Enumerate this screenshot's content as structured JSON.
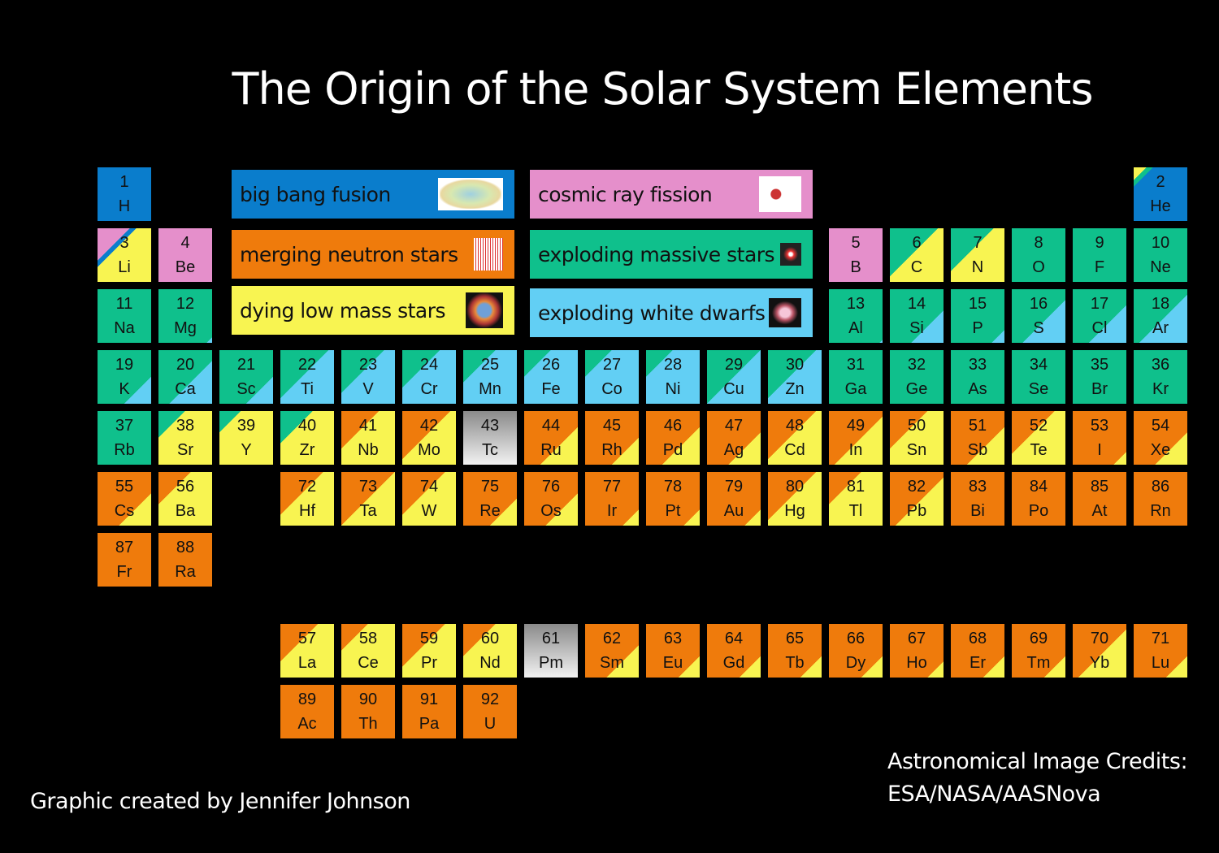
{
  "title": "The Origin of the Solar System Elements",
  "colors": {
    "bb": "#0a7dcc",
    "cr": "#e58fcb",
    "ns": "#ef7b0c",
    "ms": "#0fc08c",
    "lm": "#f8f451",
    "wd": "#62cff4"
  },
  "legend": [
    {
      "key": "bb",
      "label": "big bang fusion",
      "icon": "cmb-map-icon"
    },
    {
      "key": "ns",
      "label": "merging neutron stars",
      "icon": "gravitational-wave-icon"
    },
    {
      "key": "lm",
      "label": "dying low mass stars",
      "icon": "planetary-nebula-icon"
    },
    {
      "key": "cr",
      "label": "cosmic ray fission",
      "icon": "nucleus-fission-icon"
    },
    {
      "key": "ms",
      "label": "exploding massive stars",
      "icon": "supernova-remnant-icon"
    },
    {
      "key": "wd",
      "label": "exploding white dwarfs",
      "icon": "white-dwarf-remnant-icon"
    }
  ],
  "elements": [
    {
      "z": 1,
      "s": "H",
      "f": [
        [
          "bb",
          100
        ]
      ]
    },
    {
      "z": 2,
      "s": "He",
      "f": [
        [
          "lm",
          12
        ],
        [
          "ms",
          6
        ],
        [
          "bb",
          82
        ]
      ]
    },
    {
      "z": 3,
      "s": "Li",
      "f": [
        [
          "cr",
          30
        ],
        [
          "bb",
          6
        ],
        [
          "lm",
          64
        ]
      ]
    },
    {
      "z": 4,
      "s": "Be",
      "f": [
        [
          "cr",
          100
        ]
      ]
    },
    {
      "z": 5,
      "s": "B",
      "f": [
        [
          "cr",
          100
        ]
      ]
    },
    {
      "z": 6,
      "s": "C",
      "f": [
        [
          "ms",
          45
        ],
        [
          "lm",
          55
        ]
      ]
    },
    {
      "z": 7,
      "s": "N",
      "f": [
        [
          "ms",
          40
        ],
        [
          "lm",
          60
        ]
      ]
    },
    {
      "z": 8,
      "s": "O",
      "f": [
        [
          "ms",
          100
        ]
      ]
    },
    {
      "z": 9,
      "s": "F",
      "f": [
        [
          "ms",
          100
        ]
      ]
    },
    {
      "z": 10,
      "s": "Ne",
      "f": [
        [
          "ms",
          100
        ]
      ]
    },
    {
      "z": 11,
      "s": "Na",
      "f": [
        [
          "ms",
          100
        ]
      ]
    },
    {
      "z": 12,
      "s": "Mg",
      "f": [
        [
          "ms",
          95
        ],
        [
          "wd",
          5
        ]
      ]
    },
    {
      "z": 13,
      "s": "Al",
      "f": [
        [
          "ms",
          97
        ],
        [
          "wd",
          3
        ]
      ]
    },
    {
      "z": 14,
      "s": "Si",
      "f": [
        [
          "ms",
          70
        ],
        [
          "wd",
          30
        ]
      ]
    },
    {
      "z": 15,
      "s": "P",
      "f": [
        [
          "ms",
          88
        ],
        [
          "wd",
          12
        ]
      ]
    },
    {
      "z": 16,
      "s": "S",
      "f": [
        [
          "ms",
          60
        ],
        [
          "wd",
          40
        ]
      ]
    },
    {
      "z": 17,
      "s": "Cl",
      "f": [
        [
          "ms",
          65
        ],
        [
          "wd",
          35
        ]
      ]
    },
    {
      "z": 18,
      "s": "Ar",
      "f": [
        [
          "ms",
          55
        ],
        [
          "wd",
          45
        ]
      ]
    },
    {
      "z": 19,
      "s": "K",
      "f": [
        [
          "ms",
          75
        ],
        [
          "wd",
          25
        ]
      ]
    },
    {
      "z": 20,
      "s": "Ca",
      "f": [
        [
          "ms",
          60
        ],
        [
          "wd",
          40
        ]
      ]
    },
    {
      "z": 21,
      "s": "Sc",
      "f": [
        [
          "ms",
          75
        ],
        [
          "wd",
          25
        ]
      ]
    },
    {
      "z": 22,
      "s": "Ti",
      "f": [
        [
          "ms",
          45
        ],
        [
          "wd",
          55
        ]
      ]
    },
    {
      "z": 23,
      "s": "V",
      "f": [
        [
          "ms",
          40
        ],
        [
          "wd",
          60
        ]
      ]
    },
    {
      "z": 24,
      "s": "Cr",
      "f": [
        [
          "ms",
          35
        ],
        [
          "wd",
          65
        ]
      ]
    },
    {
      "z": 25,
      "s": "Mn",
      "f": [
        [
          "ms",
          30
        ],
        [
          "wd",
          70
        ]
      ]
    },
    {
      "z": 26,
      "s": "Fe",
      "f": [
        [
          "ms",
          25
        ],
        [
          "wd",
          75
        ]
      ]
    },
    {
      "z": 27,
      "s": "Co",
      "f": [
        [
          "ms",
          25
        ],
        [
          "wd",
          75
        ]
      ]
    },
    {
      "z": 28,
      "s": "Ni",
      "f": [
        [
          "ms",
          25
        ],
        [
          "wd",
          75
        ]
      ]
    },
    {
      "z": 29,
      "s": "Cu",
      "f": [
        [
          "ms",
          50
        ],
        [
          "wd",
          50
        ]
      ]
    },
    {
      "z": 30,
      "s": "Zn",
      "f": [
        [
          "ms",
          45
        ],
        [
          "wd",
          55
        ]
      ]
    },
    {
      "z": 31,
      "s": "Ga",
      "f": [
        [
          "ms",
          100
        ]
      ]
    },
    {
      "z": 32,
      "s": "Ge",
      "f": [
        [
          "ms",
          100
        ]
      ]
    },
    {
      "z": 33,
      "s": "As",
      "f": [
        [
          "ms",
          100
        ]
      ]
    },
    {
      "z": 34,
      "s": "Se",
      "f": [
        [
          "ms",
          100
        ]
      ]
    },
    {
      "z": 35,
      "s": "Br",
      "f": [
        [
          "ms",
          100
        ]
      ]
    },
    {
      "z": 36,
      "s": "Kr",
      "f": [
        [
          "ms",
          100
        ]
      ]
    },
    {
      "z": 37,
      "s": "Rb",
      "f": [
        [
          "ms",
          100
        ]
      ]
    },
    {
      "z": 38,
      "s": "Sr",
      "f": [
        [
          "ms",
          25
        ],
        [
          "lm",
          75
        ]
      ]
    },
    {
      "z": 39,
      "s": "Y",
      "f": [
        [
          "ms",
          20
        ],
        [
          "lm",
          80
        ]
      ]
    },
    {
      "z": 40,
      "s": "Zr",
      "f": [
        [
          "ms",
          30
        ],
        [
          "lm",
          70
        ]
      ]
    },
    {
      "z": 41,
      "s": "Nb",
      "f": [
        [
          "ns",
          35
        ],
        [
          "lm",
          65
        ]
      ]
    },
    {
      "z": 42,
      "s": "Mo",
      "f": [
        [
          "ns",
          45
        ],
        [
          "lm",
          55
        ]
      ]
    },
    {
      "z": 43,
      "s": "Tc",
      "f": []
    },
    {
      "z": 44,
      "s": "Ru",
      "f": [
        [
          "ns",
          65
        ],
        [
          "lm",
          35
        ]
      ]
    },
    {
      "z": 45,
      "s": "Rh",
      "f": [
        [
          "ns",
          75
        ],
        [
          "lm",
          25
        ]
      ]
    },
    {
      "z": 46,
      "s": "Pd",
      "f": [
        [
          "ns",
          65
        ],
        [
          "lm",
          35
        ]
      ]
    },
    {
      "z": 47,
      "s": "Ag",
      "f": [
        [
          "ns",
          70
        ],
        [
          "lm",
          30
        ]
      ]
    },
    {
      "z": 48,
      "s": "Cd",
      "f": [
        [
          "ns",
          45
        ],
        [
          "lm",
          55
        ]
      ]
    },
    {
      "z": 49,
      "s": "In",
      "f": [
        [
          "ns",
          55
        ],
        [
          "lm",
          45
        ]
      ]
    },
    {
      "z": 50,
      "s": "Sn",
      "f": [
        [
          "ns",
          35
        ],
        [
          "lm",
          65
        ]
      ]
    },
    {
      "z": 51,
      "s": "Sb",
      "f": [
        [
          "ns",
          65
        ],
        [
          "lm",
          35
        ]
      ]
    },
    {
      "z": 52,
      "s": "Te",
      "f": [
        [
          "ns",
          40
        ],
        [
          "lm",
          60
        ]
      ]
    },
    {
      "z": 53,
      "s": "I",
      "f": [
        [
          "ns",
          88
        ],
        [
          "lm",
          12
        ]
      ]
    },
    {
      "z": 54,
      "s": "Xe",
      "f": [
        [
          "ns",
          70
        ],
        [
          "lm",
          30
        ]
      ]
    },
    {
      "z": 55,
      "s": "Cs",
      "f": [
        [
          "ns",
          70
        ],
        [
          "lm",
          30
        ]
      ]
    },
    {
      "z": 56,
      "s": "Ba",
      "f": [
        [
          "ns",
          30
        ],
        [
          "lm",
          70
        ]
      ]
    },
    {
      "z": 57,
      "s": "La",
      "f": [
        [
          "ns",
          35
        ],
        [
          "lm",
          65
        ]
      ]
    },
    {
      "z": 58,
      "s": "Ce",
      "f": [
        [
          "ns",
          25
        ],
        [
          "lm",
          75
        ]
      ]
    },
    {
      "z": 59,
      "s": "Pr",
      "f": [
        [
          "ns",
          40
        ],
        [
          "lm",
          60
        ]
      ]
    },
    {
      "z": 60,
      "s": "Nd",
      "f": [
        [
          "ns",
          30
        ],
        [
          "lm",
          70
        ]
      ]
    },
    {
      "z": 61,
      "s": "Pm",
      "f": []
    },
    {
      "z": 62,
      "s": "Sm",
      "f": [
        [
          "ns",
          70
        ],
        [
          "lm",
          30
        ]
      ]
    },
    {
      "z": 63,
      "s": "Eu",
      "f": [
        [
          "ns",
          80
        ],
        [
          "lm",
          20
        ]
      ]
    },
    {
      "z": 64,
      "s": "Gd",
      "f": [
        [
          "ns",
          80
        ],
        [
          "lm",
          20
        ]
      ]
    },
    {
      "z": 65,
      "s": "Tb",
      "f": [
        [
          "ns",
          80
        ],
        [
          "lm",
          20
        ]
      ]
    },
    {
      "z": 66,
      "s": "Dy",
      "f": [
        [
          "ns",
          80
        ],
        [
          "lm",
          20
        ]
      ]
    },
    {
      "z": 67,
      "s": "Ho",
      "f": [
        [
          "ns",
          85
        ],
        [
          "lm",
          15
        ]
      ]
    },
    {
      "z": 68,
      "s": "Er",
      "f": [
        [
          "ns",
          80
        ],
        [
          "lm",
          20
        ]
      ]
    },
    {
      "z": 69,
      "s": "Tm",
      "f": [
        [
          "ns",
          80
        ],
        [
          "lm",
          20
        ]
      ]
    },
    {
      "z": 70,
      "s": "Yb",
      "f": [
        [
          "ns",
          55
        ],
        [
          "lm",
          45
        ]
      ]
    },
    {
      "z": 71,
      "s": "Lu",
      "f": [
        [
          "ns",
          80
        ],
        [
          "lm",
          20
        ]
      ]
    },
    {
      "z": 72,
      "s": "Hf",
      "f": [
        [
          "ns",
          40
        ],
        [
          "lm",
          60
        ]
      ]
    },
    {
      "z": 73,
      "s": "Ta",
      "f": [
        [
          "ns",
          50
        ],
        [
          "lm",
          50
        ]
      ]
    },
    {
      "z": 74,
      "s": "W",
      "f": [
        [
          "ns",
          40
        ],
        [
          "lm",
          60
        ]
      ]
    },
    {
      "z": 75,
      "s": "Re",
      "f": [
        [
          "ns",
          75
        ],
        [
          "lm",
          25
        ]
      ]
    },
    {
      "z": 76,
      "s": "Os",
      "f": [
        [
          "ns",
          70
        ],
        [
          "lm",
          30
        ]
      ]
    },
    {
      "z": 77,
      "s": "Ir",
      "f": [
        [
          "ns",
          85
        ],
        [
          "lm",
          15
        ]
      ]
    },
    {
      "z": 78,
      "s": "Pt",
      "f": [
        [
          "ns",
          85
        ],
        [
          "lm",
          15
        ]
      ]
    },
    {
      "z": 79,
      "s": "Au",
      "f": [
        [
          "ns",
          85
        ],
        [
          "lm",
          15
        ]
      ]
    },
    {
      "z": 80,
      "s": "Hg",
      "f": [
        [
          "ns",
          45
        ],
        [
          "lm",
          55
        ]
      ]
    },
    {
      "z": 81,
      "s": "Tl",
      "f": [
        [
          "ns",
          30
        ],
        [
          "lm",
          70
        ]
      ]
    },
    {
      "z": 82,
      "s": "Pb",
      "f": [
        [
          "ns",
          55
        ],
        [
          "lm",
          45
        ]
      ]
    },
    {
      "z": 83,
      "s": "Bi",
      "f": [
        [
          "ns",
          100
        ]
      ]
    },
    {
      "z": 84,
      "s": "Po",
      "f": [
        [
          "ns",
          100
        ]
      ]
    },
    {
      "z": 85,
      "s": "At",
      "f": [
        [
          "ns",
          100
        ]
      ]
    },
    {
      "z": 86,
      "s": "Rn",
      "f": [
        [
          "ns",
          100
        ]
      ]
    },
    {
      "z": 87,
      "s": "Fr",
      "f": [
        [
          "ns",
          100
        ]
      ]
    },
    {
      "z": 88,
      "s": "Ra",
      "f": [
        [
          "ns",
          100
        ]
      ]
    },
    {
      "z": 89,
      "s": "Ac",
      "f": [
        [
          "ns",
          100
        ]
      ]
    },
    {
      "z": 90,
      "s": "Th",
      "f": [
        [
          "ns",
          100
        ]
      ]
    },
    {
      "z": 91,
      "s": "Pa",
      "f": [
        [
          "ns",
          100
        ]
      ]
    },
    {
      "z": 92,
      "s": "U",
      "f": [
        [
          "ns",
          100
        ]
      ]
    }
  ],
  "credits": {
    "author": "Graphic created by Jennifer Johnson",
    "images_line1": "Astronomical Image Credits:",
    "images_line2": "ESA/NASA/AASNova"
  }
}
